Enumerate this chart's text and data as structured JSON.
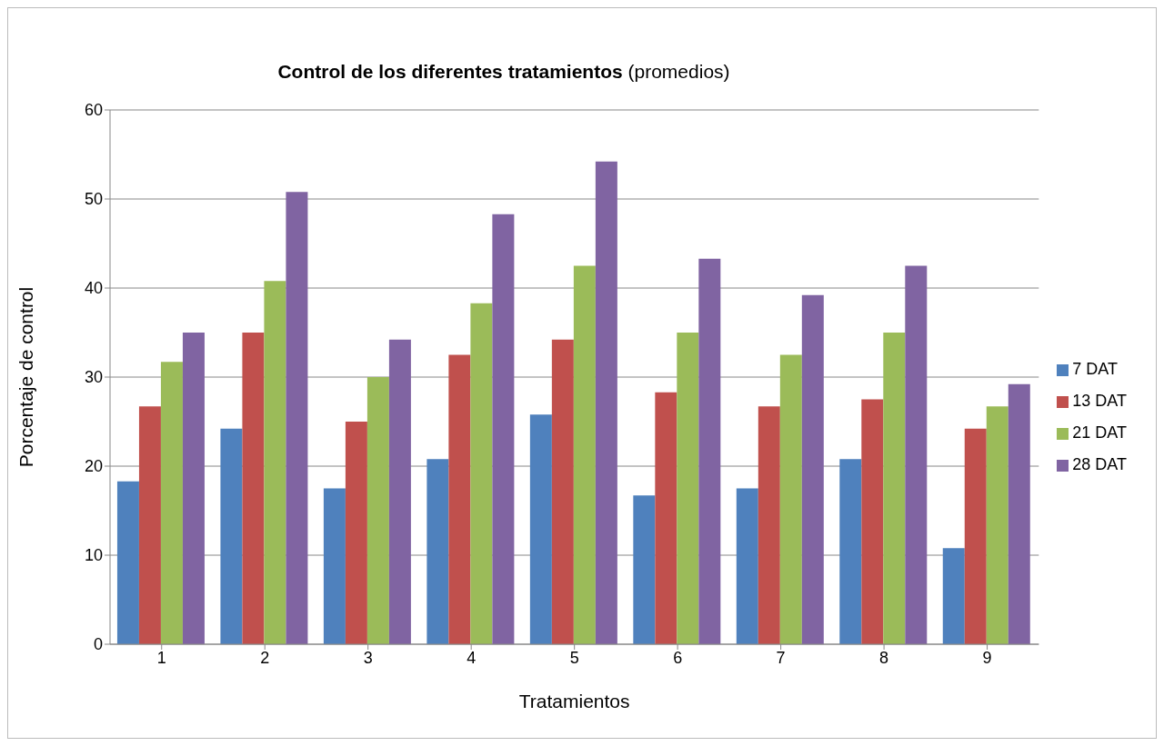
{
  "chart_data": {
    "type": "bar",
    "title": "Control de los diferentes tratamientos",
    "subtitle": "(promedios)",
    "xlabel": "Tratamientos",
    "ylabel": "Porcentaje de control",
    "categories": [
      "1",
      "2",
      "3",
      "4",
      "5",
      "6",
      "7",
      "8",
      "9"
    ],
    "series": [
      {
        "name": "7 DAT",
        "color": "#4f81bd",
        "values": [
          18.3,
          24.2,
          17.5,
          20.8,
          25.8,
          16.7,
          17.5,
          20.8,
          10.8
        ]
      },
      {
        "name": "13 DAT",
        "color": "#c0504d",
        "values": [
          26.7,
          35.0,
          25.0,
          32.5,
          34.2,
          28.3,
          26.7,
          27.5,
          24.2
        ]
      },
      {
        "name": "21 DAT",
        "color": "#9bbb59",
        "values": [
          31.7,
          40.8,
          30.0,
          38.3,
          42.5,
          35.0,
          32.5,
          35.0,
          26.7
        ]
      },
      {
        "name": "28 DAT",
        "color": "#8064a2",
        "values": [
          35.0,
          50.8,
          34.2,
          48.3,
          54.2,
          43.3,
          39.2,
          42.5,
          29.2
        ]
      }
    ],
    "ylim": [
      0,
      60
    ],
    "yticks": [
      0,
      10,
      20,
      30,
      40,
      50,
      60
    ],
    "grid": "y",
    "legend": "right"
  }
}
